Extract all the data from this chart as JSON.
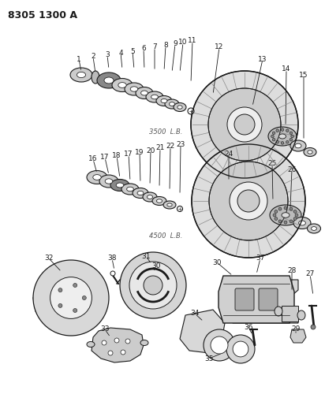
{
  "title": "8305 1300 A",
  "bg": "#ffffff",
  "fg": "#1a1a1a",
  "figsize": [
    4.12,
    5.33
  ],
  "dpi": 100,
  "label_3500": "3500  L.B.",
  "label_4500": "4500  L.B."
}
